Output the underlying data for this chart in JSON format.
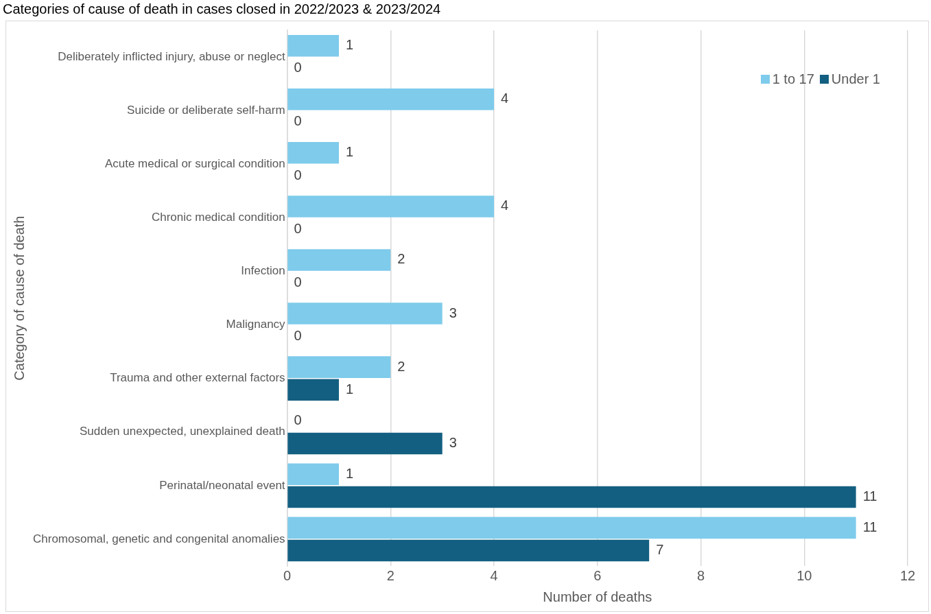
{
  "chart_data": {
    "type": "bar",
    "orientation": "horizontal",
    "title": "Categories of cause of death in cases closed in 2022/2023 & 2023/2024",
    "xlabel": "Number of deaths",
    "ylabel": "Category of cause of death",
    "categories": [
      "Deliberately inflicted injury, abuse or neglect",
      "Suicide or deliberate self-harm",
      "Acute medical or surgical condition",
      "Chronic medical condition",
      "Infection",
      "Malignancy",
      "Trauma and other external factors",
      "Sudden unexpected, unexplained death",
      "Perinatal/neonatal event",
      "Chromosomal, genetic and congenital anomalies"
    ],
    "series": [
      {
        "name": "1 to 17",
        "color": "#7ecbeb",
        "values": [
          1,
          4,
          1,
          4,
          2,
          3,
          2,
          0,
          1,
          11
        ]
      },
      {
        "name": "Under 1",
        "color": "#135f81",
        "values": [
          0,
          0,
          0,
          0,
          0,
          0,
          1,
          3,
          11,
          7
        ]
      }
    ],
    "xlim": [
      0,
      12
    ],
    "xticks": [
      0,
      2,
      4,
      6,
      8,
      10,
      12
    ],
    "grid": "x",
    "legend": "top right",
    "data_labels": true
  }
}
